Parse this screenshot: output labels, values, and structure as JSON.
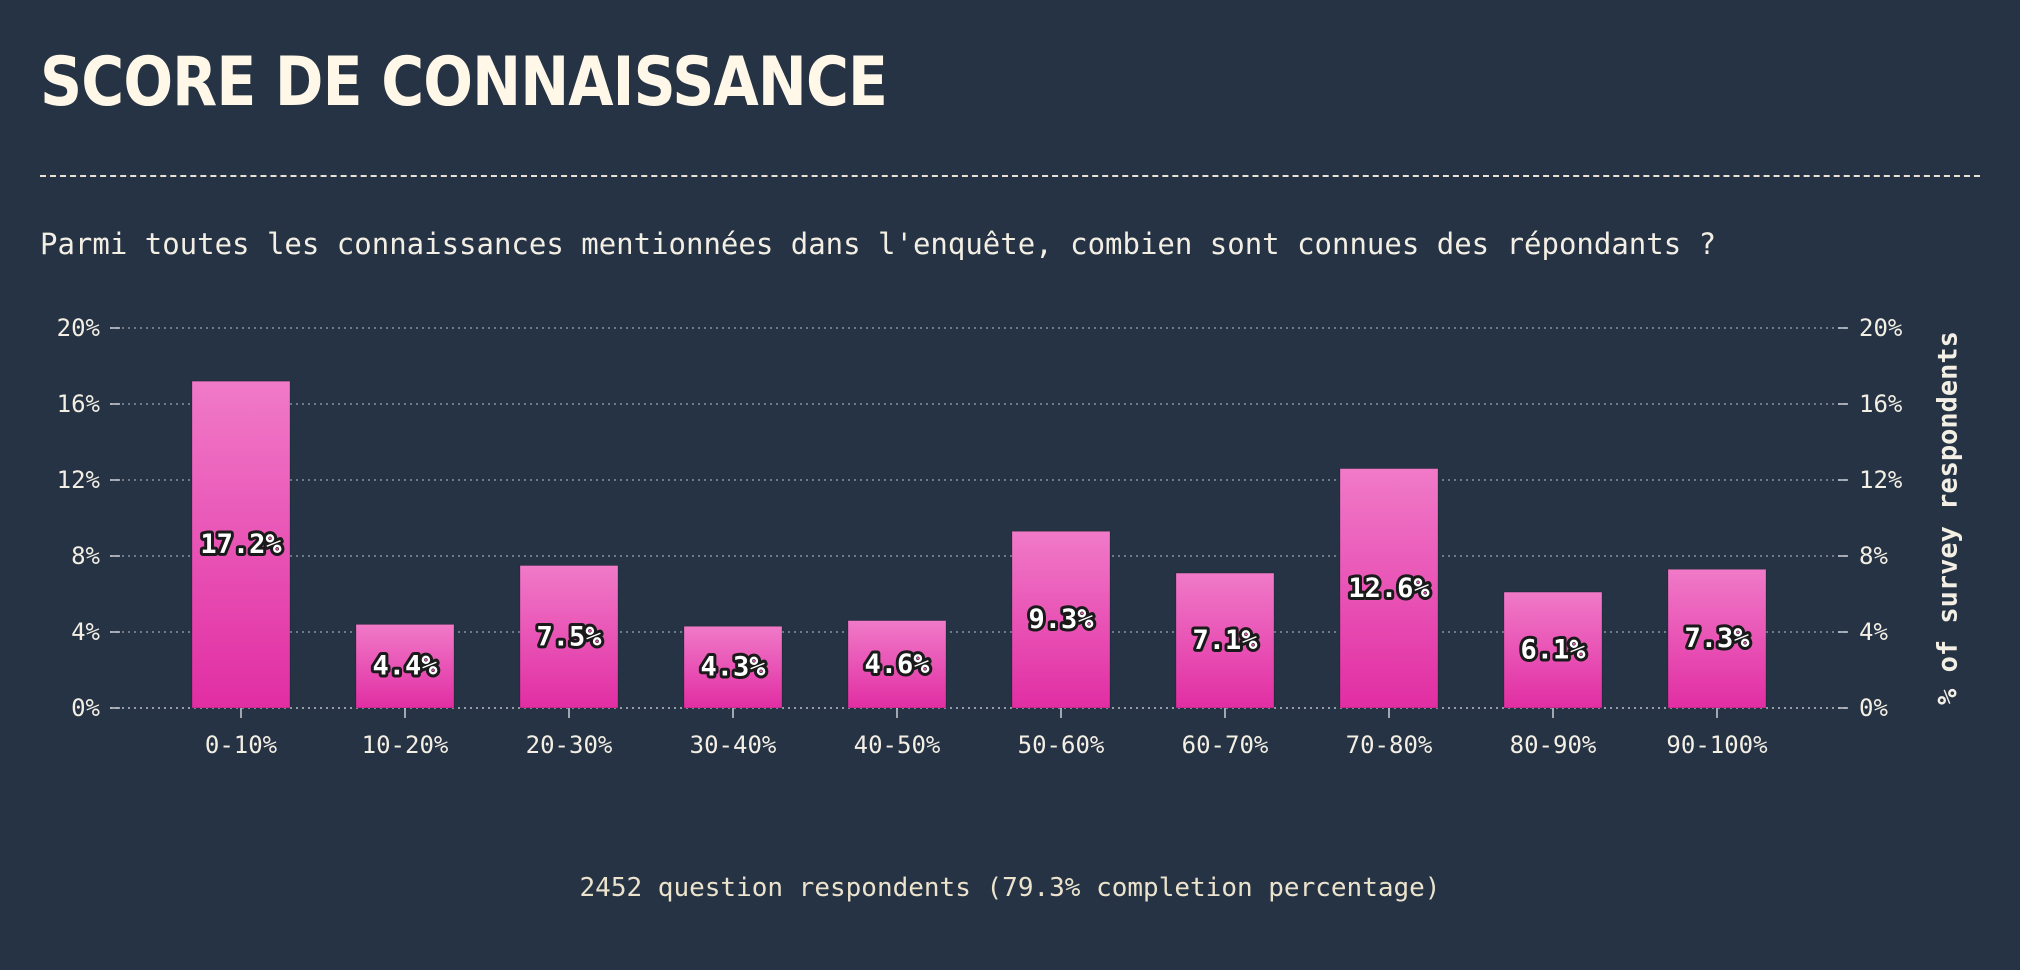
{
  "page": {
    "title": "SCORE DE CONNAISSANCE",
    "subtitle": "Parmi toutes les connaissances mentionnées dans l'enquête, combien sont connues des répondants ?",
    "footer": "2452 question respondents (79.3% completion percentage)"
  },
  "colors": {
    "background": "#253344",
    "bar_top": "#f07ac8",
    "bar_bottom": "#e12ea3",
    "text": "#f4efe5",
    "grid": "#8a93a0"
  },
  "chart_data": {
    "type": "bar",
    "categories": [
      "0-10%",
      "10-20%",
      "20-30%",
      "30-40%",
      "40-50%",
      "50-60%",
      "60-70%",
      "70-80%",
      "80-90%",
      "90-100%"
    ],
    "values": [
      17.2,
      4.4,
      7.5,
      4.3,
      4.6,
      9.3,
      7.1,
      12.6,
      6.1,
      7.3
    ],
    "value_labels": [
      "17.2%",
      "4.4%",
      "7.5%",
      "4.3%",
      "4.6%",
      "9.3%",
      "7.1%",
      "12.6%",
      "6.1%",
      "7.3%"
    ],
    "ylim": [
      0,
      20
    ],
    "yticks": [
      0,
      4,
      8,
      12,
      16,
      20
    ],
    "ytick_labels": [
      "0%",
      "4%",
      "8%",
      "12%",
      "16%",
      "20%"
    ],
    "ylabel_right": "% of survey respondents",
    "grid": true
  }
}
